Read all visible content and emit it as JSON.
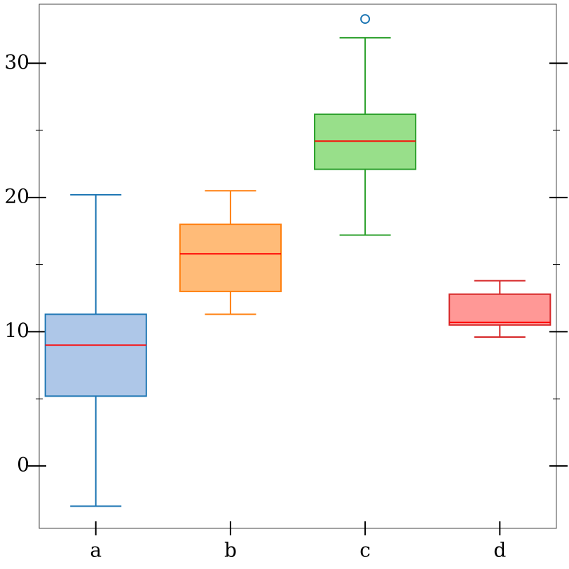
{
  "chart_data": {
    "type": "box",
    "categories": [
      "a",
      "b",
      "c",
      "d"
    ],
    "boxes": [
      {
        "whislo": -3.0,
        "q1": 5.2,
        "med": 9.0,
        "q3": 11.3,
        "whishi": 20.2,
        "fliers": [],
        "color": "#aec7e8",
        "edgecolor": "#1f77b4"
      },
      {
        "whislo": 11.3,
        "q1": 13.0,
        "med": 15.8,
        "q3": 18.0,
        "whishi": 20.5,
        "fliers": [],
        "color": "#ffbb78",
        "edgecolor": "#ff7f0e"
      },
      {
        "whislo": 17.2,
        "q1": 22.1,
        "med": 24.2,
        "q3": 26.2,
        "whishi": 31.9,
        "fliers": [
          33.3
        ],
        "color": "#98df8a",
        "edgecolor": "#2ca02c"
      },
      {
        "whislo": 9.6,
        "q1": 10.5,
        "med": 10.7,
        "q3": 12.8,
        "whishi": 13.8,
        "fliers": [],
        "color": "#ff9896",
        "edgecolor": "#d62728"
      }
    ],
    "median_color": "#ff0000",
    "flier_color": "#1f77b4",
    "ylim": [
      -4.65,
      34.4
    ],
    "yticks": [
      0,
      10,
      20,
      30
    ],
    "yminorticks": [
      5,
      15,
      25
    ]
  }
}
